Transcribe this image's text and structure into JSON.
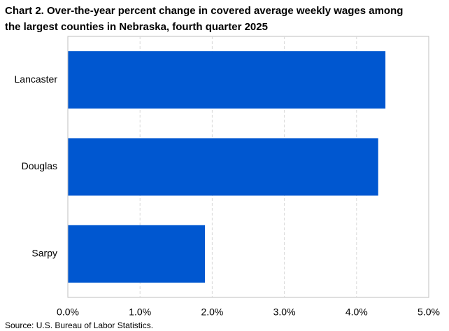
{
  "chart_data": {
    "type": "bar",
    "orientation": "horizontal",
    "title": [
      "Chart 2. Over-the-year percent change in covered average weekly wages among",
      "the largest counties in Nebraska, fourth quarter 2025"
    ],
    "categories": [
      "Lancaster",
      "Douglas",
      "Sarpy"
    ],
    "values": [
      4.4,
      4.3,
      1.9
    ],
    "color": "#0057d0",
    "xlim": [
      0,
      5
    ],
    "xticks": [
      {
        "value": 0,
        "label": "0.0%"
      },
      {
        "value": 1,
        "label": "1.0%"
      },
      {
        "value": 2,
        "label": "2.0%"
      },
      {
        "value": 3,
        "label": "3.0%"
      },
      {
        "value": 4,
        "label": "4.0%"
      },
      {
        "value": 5,
        "label": "5.0%"
      }
    ],
    "grid": true,
    "source": "Source: U.S. Bureau of Labor Statistics."
  }
}
